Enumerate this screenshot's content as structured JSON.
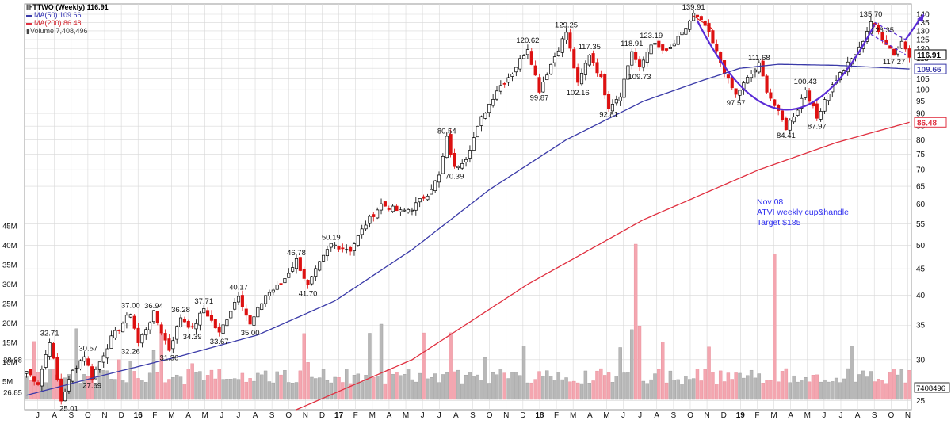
{
  "legend": {
    "title": "TTWO (Weekly) 116.91",
    "ma50": "MA(50) 109.66",
    "ma200": "MA(200) 86.48",
    "volume": "Volume 7,408,496"
  },
  "annotation": {
    "line1": "Nov 08",
    "line2": "ATVI weekly cup&handle",
    "line3": "Target $185"
  },
  "colors": {
    "up": "#000000",
    "down": "#dd1111",
    "ma50": "#3a3aa8",
    "ma200": "#e03040",
    "pattern": "#5a2bd6",
    "vol_up": "#b8b8b8",
    "vol_down": "#f4a6b0",
    "grid": "#d8d8d8"
  },
  "chart_data": {
    "type": "candlestick",
    "scale": "log",
    "ylim": [
      24,
      143
    ],
    "y_ticks": [
      25,
      30,
      35,
      40,
      45,
      50,
      55,
      60,
      65,
      70,
      75,
      80,
      85,
      90,
      95,
      100,
      105,
      110,
      115,
      120,
      125,
      130,
      135,
      140
    ],
    "y_tick_labels": [
      "25",
      "30",
      "35",
      "40",
      "45",
      "50",
      "55",
      "60",
      "65",
      "70",
      "75",
      "80",
      "85",
      "90",
      "95",
      "100",
      "105",
      "110",
      "115",
      "120",
      "125",
      "130",
      "135",
      "140"
    ],
    "volume_ticks": [
      "5M",
      "10M",
      "15M",
      "20M",
      "25M",
      "30M",
      "35M",
      "40M",
      "45M"
    ],
    "x_labels": [
      "J",
      "A",
      "S",
      "O",
      "N",
      "D",
      "16",
      "F",
      "M",
      "A",
      "M",
      "J",
      "J",
      "A",
      "S",
      "O",
      "N",
      "D",
      "17",
      "F",
      "M",
      "A",
      "M",
      "J",
      "J",
      "A",
      "S",
      "O",
      "N",
      "D",
      "18",
      "F",
      "M",
      "A",
      "M",
      "J",
      "J",
      "A",
      "S",
      "O",
      "N",
      "D",
      "19",
      "F",
      "M",
      "A",
      "M",
      "J",
      "J",
      "A",
      "S",
      "O",
      "N"
    ],
    "x_bold_labels": [
      "16",
      "17",
      "18",
      "19"
    ],
    "last_price": "116.91",
    "ma50_last": "109.66",
    "ma200_last": "86.48",
    "volume_last": "7408496",
    "price_anchors": [
      {
        "label": "28.98",
        "value": 28.98
      },
      {
        "label": "26.85",
        "value": 26.85
      },
      {
        "label": "32.71",
        "value": 32.71
      },
      {
        "label": "25.01",
        "value": 25.01
      },
      {
        "label": "30.57",
        "value": 30.57
      },
      {
        "label": "27.69",
        "value": 27.69
      },
      {
        "label": "37.00",
        "value": 37.0
      },
      {
        "label": "32.26",
        "value": 32.26
      },
      {
        "label": "36.94",
        "value": 36.94
      },
      {
        "label": "31.36",
        "value": 31.36
      },
      {
        "label": "36.28",
        "value": 36.28
      },
      {
        "label": "34.39",
        "value": 34.39
      },
      {
        "label": "37.71",
        "value": 37.71
      },
      {
        "label": "33.67",
        "value": 33.67
      },
      {
        "label": "40.17",
        "value": 40.17
      },
      {
        "label": "35.00",
        "value": 35.0
      },
      {
        "label": "46.78",
        "value": 46.78
      },
      {
        "label": "41.70",
        "value": 41.7
      },
      {
        "label": "50.19",
        "value": 50.19
      },
      {
        "label": "80.54",
        "value": 80.54
      },
      {
        "label": "70.39",
        "value": 70.39
      },
      {
        "label": "120.62",
        "value": 120.62
      },
      {
        "label": "99.87",
        "value": 99.87
      },
      {
        "label": "129.25",
        "value": 129.25
      },
      {
        "label": "102.16",
        "value": 102.16
      },
      {
        "label": "117.35",
        "value": 117.35
      },
      {
        "label": "92.81",
        "value": 92.81
      },
      {
        "label": "118.91",
        "value": 118.91
      },
      {
        "label": "109.73",
        "value": 109.73
      },
      {
        "label": "123.19",
        "value": 123.19
      },
      {
        "label": "139.91",
        "value": 139.91
      },
      {
        "label": "97.57",
        "value": 97.57
      },
      {
        "label": "111.68",
        "value": 111.68
      },
      {
        "label": "84.41",
        "value": 84.41
      },
      {
        "label": "100.43",
        "value": 100.43
      },
      {
        "label": "87.97",
        "value": 87.97
      },
      {
        "label": "135.70",
        "value": 135.7
      },
      {
        "label": "126.35",
        "value": 126.35
      },
      {
        "label": "117.27",
        "value": 117.27
      }
    ],
    "price_path": [
      [
        0,
        28.5
      ],
      [
        3,
        27
      ],
      [
        6,
        32.7
      ],
      [
        9,
        25.0
      ],
      [
        12,
        28.5
      ],
      [
        15,
        30.6
      ],
      [
        17,
        27.7
      ],
      [
        22,
        33
      ],
      [
        27,
        37
      ],
      [
        29,
        32.3
      ],
      [
        33,
        36.9
      ],
      [
        37,
        31.4
      ],
      [
        40,
        36.3
      ],
      [
        43,
        34.4
      ],
      [
        46,
        37.7
      ],
      [
        50,
        33.7
      ],
      [
        55,
        40.2
      ],
      [
        58,
        35.0
      ],
      [
        62,
        40
      ],
      [
        66,
        42
      ],
      [
        70,
        46.8
      ],
      [
        73,
        41.7
      ],
      [
        76,
        46
      ],
      [
        79,
        50.2
      ],
      [
        84,
        49
      ],
      [
        88,
        55
      ],
      [
        92,
        60
      ],
      [
        97,
        58
      ],
      [
        100,
        59
      ],
      [
        104,
        63
      ],
      [
        107,
        68
      ],
      [
        109,
        80.5
      ],
      [
        111,
        70.4
      ],
      [
        114,
        74
      ],
      [
        118,
        88
      ],
      [
        122,
        100
      ],
      [
        126,
        108
      ],
      [
        130,
        120.6
      ],
      [
        133,
        99.9
      ],
      [
        136,
        112
      ],
      [
        140,
        129.3
      ],
      [
        143,
        102.2
      ],
      [
        146,
        117.4
      ],
      [
        149,
        105
      ],
      [
        151,
        92.8
      ],
      [
        154,
        98
      ],
      [
        157,
        118.9
      ],
      [
        159,
        109.7
      ],
      [
        162,
        123.2
      ],
      [
        166,
        118
      ],
      [
        170,
        128
      ],
      [
        173,
        139.9
      ],
      [
        176,
        133
      ],
      [
        179,
        118
      ],
      [
        182,
        104
      ],
      [
        184,
        97.6
      ],
      [
        187,
        105
      ],
      [
        190,
        111.7
      ],
      [
        192,
        100
      ],
      [
        195,
        90
      ],
      [
        197,
        84.4
      ],
      [
        200,
        92
      ],
      [
        202,
        100.4
      ],
      [
        205,
        88
      ],
      [
        207,
        96
      ],
      [
        210,
        105
      ],
      [
        213,
        112
      ],
      [
        216,
        120
      ],
      [
        219,
        135.7
      ],
      [
        222,
        126.4
      ],
      [
        225,
        117.3
      ],
      [
        227,
        124
      ],
      [
        229,
        116.9
      ]
    ],
    "ma50_path": [
      [
        0,
        25.6
      ],
      [
        20,
        28
      ],
      [
        40,
        30.5
      ],
      [
        60,
        33.5
      ],
      [
        80,
        39
      ],
      [
        100,
        49
      ],
      [
        120,
        64
      ],
      [
        140,
        80
      ],
      [
        160,
        95
      ],
      [
        175,
        104
      ],
      [
        185,
        110
      ],
      [
        195,
        112
      ],
      [
        210,
        111.5
      ],
      [
        229,
        109.66
      ]
    ],
    "ma200_path": [
      [
        70,
        24
      ],
      [
        100,
        30
      ],
      [
        130,
        42
      ],
      [
        160,
        56
      ],
      [
        190,
        70
      ],
      [
        210,
        79
      ],
      [
        229,
        86.48
      ]
    ],
    "volume_peaks": [
      {
        "week": 158,
        "value": 40
      },
      {
        "week": 194,
        "value": 37.5
      }
    ]
  }
}
